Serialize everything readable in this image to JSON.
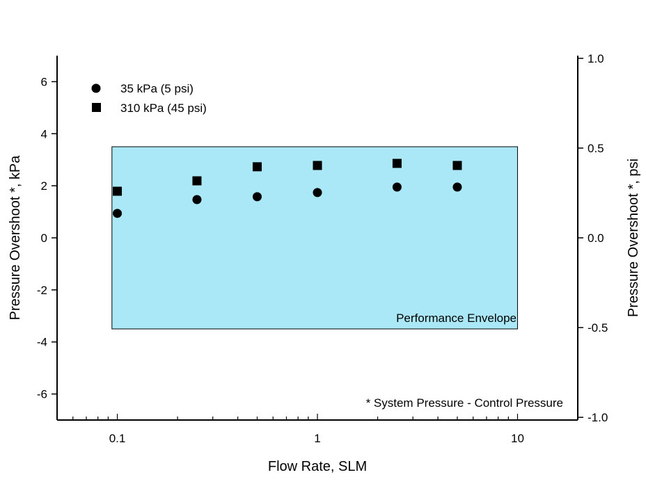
{
  "chart_data": {
    "type": "scatter",
    "title": "",
    "xlabel": "Flow Rate, SLM",
    "ylabel": "Pressure Overshoot *, kPa",
    "ylabel_right": "Pressure Overshoot *, psi",
    "x_scale": "log",
    "xlim": [
      0.05,
      20
    ],
    "ylim": [
      -7,
      7
    ],
    "ylim_right": [
      -1.015,
      1.015
    ],
    "x_ticks": [
      {
        "v": 0.1,
        "label": "0.1"
      },
      {
        "v": 1,
        "label": "1"
      },
      {
        "v": 10,
        "label": "10"
      }
    ],
    "y_ticks": [
      {
        "v": 6,
        "label": "6"
      },
      {
        "v": 4,
        "label": "4"
      },
      {
        "v": 2,
        "label": "2"
      },
      {
        "v": 0,
        "label": "0"
      },
      {
        "v": -2,
        "label": "-2"
      },
      {
        "v": -4,
        "label": "-4"
      },
      {
        "v": -6,
        "label": "-6"
      }
    ],
    "y_right_ticks": [
      {
        "v": 1.0,
        "label": "1.0"
      },
      {
        "v": 0.5,
        "label": "0.5"
      },
      {
        "v": 0.0,
        "label": "0.0"
      },
      {
        "v": -0.5,
        "label": "-0.5"
      },
      {
        "v": -1.0,
        "label": "-1.0"
      }
    ],
    "grid": false,
    "legend_position": "top-left",
    "series": [
      {
        "name": "35 kPa (5 psi)",
        "marker": "circle",
        "color": "#000000",
        "x": [
          0.1,
          0.25,
          0.5,
          1,
          2.5,
          5
        ],
        "y": [
          0.94,
          1.47,
          1.58,
          1.74,
          1.95,
          1.95
        ]
      },
      {
        "name": "310 kPa (45 psi)",
        "marker": "square",
        "color": "#000000",
        "x": [
          0.1,
          0.25,
          0.5,
          1,
          2.5,
          5
        ],
        "y": [
          1.79,
          2.19,
          2.73,
          2.78,
          2.86,
          2.78
        ]
      }
    ],
    "envelope": {
      "label": "Performance Envelope",
      "x": [
        0.094,
        10
      ],
      "y": [
        -3.5,
        3.5
      ],
      "color": "#aae8f8"
    },
    "footnote": "* System Pressure - Control Pressure"
  }
}
